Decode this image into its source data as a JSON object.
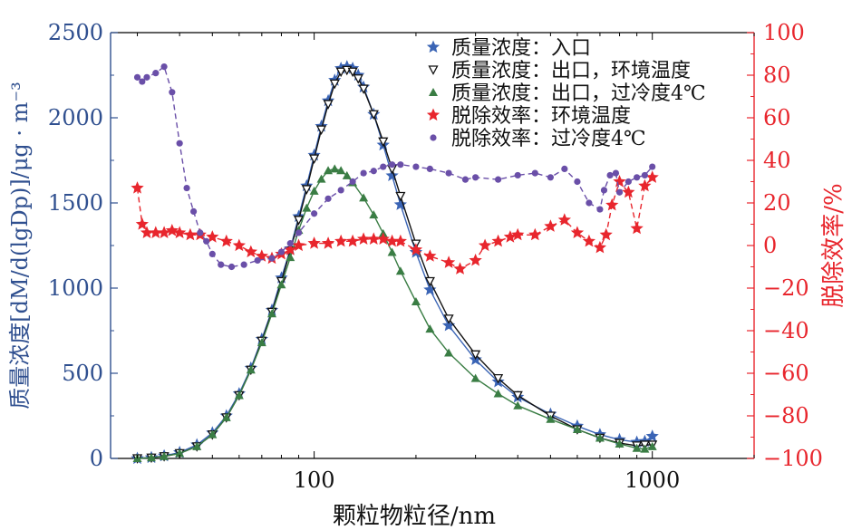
{
  "chart_data": {
    "type": "line",
    "xscale": "log",
    "xlabel": "颗粒物粒径/nm",
    "xlim": [
      25,
      2000
    ],
    "x_ticks": [
      {
        "value": 100,
        "label": "100"
      },
      {
        "value": 1000,
        "label": "1000"
      }
    ],
    "y_left": {
      "label": "质量浓度[dM/d(lgDp)]/μg · m⁻³",
      "color": "#2f4f8f",
      "lim": [
        0,
        2500
      ],
      "ticks": [
        0,
        500,
        1000,
        1500,
        2000,
        2500
      ]
    },
    "y_right": {
      "label": "脱除效率/%",
      "color": "#e8262d",
      "lim": [
        -100,
        100
      ],
      "ticks": [
        -100,
        -80,
        -60,
        -40,
        -20,
        0,
        20,
        40,
        60,
        80,
        100
      ]
    },
    "legend_position": "top-right",
    "series": [
      {
        "name": "质量浓度：入口",
        "axis": "left",
        "color": "#3a64b5",
        "marker": "star",
        "line": "solid",
        "points": [
          [
            30,
            0
          ],
          [
            33,
            5
          ],
          [
            36,
            15
          ],
          [
            40,
            35
          ],
          [
            45,
            80
          ],
          [
            50,
            150
          ],
          [
            55,
            250
          ],
          [
            60,
            380
          ],
          [
            65,
            530
          ],
          [
            70,
            700
          ],
          [
            75,
            870
          ],
          [
            80,
            1060
          ],
          [
            85,
            1230
          ],
          [
            90,
            1420
          ],
          [
            95,
            1600
          ],
          [
            100,
            1780
          ],
          [
            105,
            1950
          ],
          [
            110,
            2100
          ],
          [
            115,
            2220
          ],
          [
            120,
            2290
          ],
          [
            125,
            2300
          ],
          [
            130,
            2290
          ],
          [
            135,
            2250
          ],
          [
            140,
            2180
          ],
          [
            150,
            2020
          ],
          [
            160,
            1840
          ],
          [
            170,
            1660
          ],
          [
            180,
            1490
          ],
          [
            200,
            1210
          ],
          [
            220,
            990
          ],
          [
            250,
            780
          ],
          [
            300,
            580
          ],
          [
            350,
            450
          ],
          [
            400,
            360
          ],
          [
            500,
            260
          ],
          [
            600,
            190
          ],
          [
            700,
            140
          ],
          [
            800,
            110
          ],
          [
            900,
            95
          ],
          [
            950,
            100
          ],
          [
            1000,
            130
          ]
        ]
      },
      {
        "name": "质量浓度：出口，环境温度",
        "axis": "left",
        "color": "#111111",
        "marker": "triangle-down-open",
        "line": "solid",
        "points": [
          [
            30,
            0
          ],
          [
            33,
            4
          ],
          [
            36,
            12
          ],
          [
            40,
            30
          ],
          [
            45,
            70
          ],
          [
            50,
            140
          ],
          [
            55,
            240
          ],
          [
            60,
            370
          ],
          [
            65,
            520
          ],
          [
            70,
            690
          ],
          [
            75,
            860
          ],
          [
            80,
            1040
          ],
          [
            85,
            1220
          ],
          [
            90,
            1400
          ],
          [
            95,
            1580
          ],
          [
            100,
            1760
          ],
          [
            105,
            1930
          ],
          [
            110,
            2080
          ],
          [
            115,
            2200
          ],
          [
            120,
            2270
          ],
          [
            125,
            2280
          ],
          [
            130,
            2270
          ],
          [
            135,
            2230
          ],
          [
            140,
            2170
          ],
          [
            150,
            2020
          ],
          [
            160,
            1860
          ],
          [
            170,
            1700
          ],
          [
            180,
            1540
          ],
          [
            200,
            1260
          ],
          [
            220,
            1040
          ],
          [
            250,
            820
          ],
          [
            300,
            610
          ],
          [
            350,
            470
          ],
          [
            400,
            370
          ],
          [
            500,
            250
          ],
          [
            600,
            170
          ],
          [
            700,
            120
          ],
          [
            800,
            90
          ],
          [
            900,
            75
          ],
          [
            950,
            80
          ],
          [
            1000,
            80
          ]
        ]
      },
      {
        "name": "质量浓度：出口，过冷度4℃",
        "axis": "left",
        "color": "#3a7d44",
        "marker": "triangle",
        "line": "solid",
        "points": [
          [
            30,
            0
          ],
          [
            33,
            4
          ],
          [
            36,
            12
          ],
          [
            40,
            30
          ],
          [
            45,
            70
          ],
          [
            50,
            140
          ],
          [
            55,
            240
          ],
          [
            60,
            370
          ],
          [
            65,
            520
          ],
          [
            70,
            680
          ],
          [
            75,
            850
          ],
          [
            80,
            1020
          ],
          [
            85,
            1180
          ],
          [
            90,
            1340
          ],
          [
            95,
            1470
          ],
          [
            100,
            1570
          ],
          [
            105,
            1640
          ],
          [
            110,
            1690
          ],
          [
            115,
            1700
          ],
          [
            120,
            1690
          ],
          [
            125,
            1660
          ],
          [
            130,
            1620
          ],
          [
            140,
            1530
          ],
          [
            150,
            1430
          ],
          [
            160,
            1320
          ],
          [
            170,
            1210
          ],
          [
            180,
            1100
          ],
          [
            200,
            920
          ],
          [
            220,
            760
          ],
          [
            250,
            620
          ],
          [
            300,
            470
          ],
          [
            350,
            380
          ],
          [
            400,
            310
          ],
          [
            500,
            230
          ],
          [
            600,
            170
          ],
          [
            700,
            120
          ],
          [
            800,
            85
          ],
          [
            900,
            60
          ],
          [
            950,
            55
          ],
          [
            1000,
            70
          ]
        ]
      },
      {
        "name": "脱除效率：环境温度",
        "axis": "right",
        "color": "#e8262d",
        "marker": "star",
        "line": "dashed",
        "points": [
          [
            30,
            27
          ],
          [
            31,
            10
          ],
          [
            32,
            6
          ],
          [
            34,
            6
          ],
          [
            36,
            6
          ],
          [
            38,
            7
          ],
          [
            40,
            6
          ],
          [
            43,
            5
          ],
          [
            46,
            5
          ],
          [
            50,
            4
          ],
          [
            55,
            2
          ],
          [
            60,
            0
          ],
          [
            65,
            -3
          ],
          [
            70,
            -5
          ],
          [
            75,
            -6
          ],
          [
            80,
            -4
          ],
          [
            85,
            -2
          ],
          [
            90,
            0
          ],
          [
            100,
            1
          ],
          [
            110,
            1
          ],
          [
            120,
            2
          ],
          [
            130,
            2
          ],
          [
            140,
            3
          ],
          [
            150,
            3
          ],
          [
            160,
            3
          ],
          [
            170,
            2
          ],
          [
            180,
            2
          ],
          [
            200,
            -2
          ],
          [
            220,
            -5
          ],
          [
            250,
            -8
          ],
          [
            270,
            -11
          ],
          [
            300,
            -7
          ],
          [
            320,
            0
          ],
          [
            350,
            2
          ],
          [
            380,
            4
          ],
          [
            400,
            5
          ],
          [
            450,
            5
          ],
          [
            500,
            9
          ],
          [
            550,
            12
          ],
          [
            600,
            6
          ],
          [
            650,
            2
          ],
          [
            700,
            -1
          ],
          [
            730,
            5
          ],
          [
            760,
            19
          ],
          [
            800,
            30
          ],
          [
            850,
            25
          ],
          [
            900,
            8
          ],
          [
            950,
            28
          ],
          [
            1000,
            32
          ]
        ]
      },
      {
        "name": "脱除效率：过冷度4℃",
        "axis": "right",
        "color": "#6a4fa8",
        "marker": "circle",
        "line": "dashed",
        "points": [
          [
            30,
            79
          ],
          [
            31,
            77
          ],
          [
            32,
            79
          ],
          [
            34,
            81
          ],
          [
            36,
            84
          ],
          [
            38,
            72
          ],
          [
            40,
            48
          ],
          [
            42,
            27
          ],
          [
            44,
            16
          ],
          [
            46,
            6
          ],
          [
            48,
            2
          ],
          [
            50,
            -4
          ],
          [
            53,
            -9
          ],
          [
            57,
            -10
          ],
          [
            62,
            -9
          ],
          [
            68,
            -7
          ],
          [
            75,
            -6
          ],
          [
            80,
            -3
          ],
          [
            85,
            1
          ],
          [
            90,
            6
          ],
          [
            100,
            15
          ],
          [
            110,
            22
          ],
          [
            120,
            26
          ],
          [
            130,
            30
          ],
          [
            140,
            34
          ],
          [
            150,
            35
          ],
          [
            160,
            37
          ],
          [
            170,
            38
          ],
          [
            180,
            38
          ],
          [
            200,
            37
          ],
          [
            220,
            36
          ],
          [
            250,
            34
          ],
          [
            280,
            31
          ],
          [
            300,
            32
          ],
          [
            350,
            31
          ],
          [
            400,
            33
          ],
          [
            450,
            34
          ],
          [
            500,
            32
          ],
          [
            550,
            36
          ],
          [
            600,
            30
          ],
          [
            650,
            20
          ],
          [
            700,
            17
          ],
          [
            720,
            26
          ],
          [
            750,
            33
          ],
          [
            780,
            34
          ],
          [
            800,
            25
          ],
          [
            850,
            30
          ],
          [
            900,
            32
          ],
          [
            950,
            33
          ],
          [
            1000,
            37
          ]
        ]
      }
    ]
  }
}
